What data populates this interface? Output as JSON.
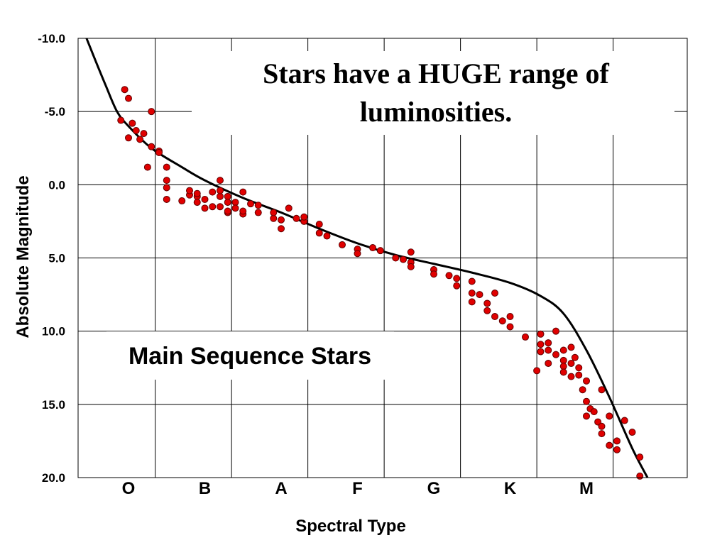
{
  "chart_data": {
    "type": "scatter",
    "title": "Stars have a HUGE range of luminosities.",
    "title_lines": [
      "Stars have a HUGE range of",
      "luminosities."
    ],
    "annotation": "Main Sequence Stars",
    "xlabel": "Spectral Type",
    "ylabel": "Absolute Magnitude",
    "y_inverted": true,
    "ylim": [
      -10,
      20
    ],
    "yticks": [
      "-10.0",
      "-5.0",
      "0.0",
      "5.0",
      "10.0",
      "15.0",
      "20.0"
    ],
    "ytick_values": [
      -10,
      -5,
      0,
      5,
      10,
      15,
      20
    ],
    "categories": [
      "O",
      "B",
      "A",
      "F",
      "G",
      "K",
      "M"
    ],
    "grid": true,
    "colors": {
      "points": "#e00000",
      "curve": "#000000",
      "grid": "#000000"
    },
    "curve": {
      "x": [
        -0.55,
        -0.45,
        -0.3,
        -0.15,
        0,
        0.3,
        0.7,
        1,
        1.5,
        2,
        2.5,
        3,
        3.5,
        4,
        4.5,
        5,
        5.4,
        5.7,
        6.0,
        6.3,
        6.6,
        6.8
      ],
      "y": [
        -10,
        -8.7,
        -6.8,
        -5,
        -4.0,
        -2.5,
        -1.2,
        -0.3,
        0.9,
        1.9,
        3.0,
        4.0,
        4.8,
        5.4,
        6.0,
        6.7,
        7.6,
        8.8,
        11.3,
        14.5,
        18.0,
        20.0
      ]
    },
    "points": {
      "x": [
        -0.05,
        -0.1,
        0,
        0.05,
        0,
        0.1,
        0.2,
        0.3,
        0.15,
        0.3,
        0.4,
        0.5,
        0.4,
        0.5,
        0.25,
        0.5,
        0.5,
        0.7,
        0.8,
        0.9,
        0.8,
        0.9,
        1.0,
        0.9,
        1.1,
        1.0,
        1.2,
        1.1,
        1.2,
        1.2,
        1.3,
        1.3,
        1.2,
        1.3,
        1.4,
        1.4,
        1.5,
        1.3,
        1.5,
        1.6,
        1.7,
        1.5,
        1.7,
        1.9,
        1.9,
        2.0,
        2.1,
        2.3,
        2.2,
        2.0,
        2.3,
        2.5,
        2.5,
        2.6,
        2.8,
        3.0,
        3.0,
        3.2,
        3.3,
        3.5,
        3.7,
        3.7,
        3.6,
        3.7,
        4.0,
        4.0,
        4.2,
        4.3,
        4.3,
        4.5,
        4.5,
        4.6,
        4.5,
        4.7,
        4.7,
        4.8,
        4.8,
        4.9,
        5.0,
        5.0,
        5.2,
        5.4,
        5.4,
        5.35,
        5.4,
        5.5,
        5.5,
        5.5,
        5.6,
        5.6,
        5.7,
        5.7,
        5.7,
        5.7,
        5.8,
        5.8,
        5.8,
        5.9,
        5.85,
        5.9,
        6.0,
        5.95,
        6.0,
        6.05,
        6.0,
        6.1,
        6.15,
        6.2,
        6.2,
        6.3,
        6.2,
        6.3,
        6.4,
        6.4,
        6.5,
        6.6,
        6.7,
        6.7
      ],
      "y": [
        -6.5,
        -4.4,
        -5.9,
        -4.2,
        -3.2,
        -3.7,
        -3.5,
        -5.0,
        -3.1,
        -2.6,
        -2.3,
        -1.2,
        -2.2,
        -0.3,
        -1.2,
        0.2,
        1.0,
        1.1,
        0.7,
        0.8,
        0.4,
        0.6,
        1.0,
        1.2,
        1.5,
        1.6,
        0.8,
        0.5,
        0.4,
        -0.3,
        0.8,
        1.2,
        1.5,
        1.9,
        1.2,
        1.6,
        2.0,
        1.8,
        1.8,
        1.3,
        1.9,
        0.5,
        1.4,
        2.3,
        1.9,
        2.4,
        1.6,
        2.5,
        2.3,
        3.0,
        2.2,
        2.7,
        3.3,
        3.5,
        4.1,
        4.4,
        4.7,
        4.3,
        4.5,
        5.0,
        4.6,
        5.3,
        5.1,
        5.6,
        5.8,
        6.1,
        6.2,
        6.4,
        6.9,
        6.6,
        7.4,
        7.5,
        8.0,
        8.1,
        8.6,
        7.4,
        9.0,
        9.3,
        9.0,
        9.7,
        10.4,
        10.9,
        11.4,
        12.7,
        10.2,
        10.8,
        11.3,
        12.2,
        10.0,
        11.6,
        11.3,
        12.0,
        12.4,
        12.8,
        11.1,
        12.2,
        13.1,
        13.0,
        11.8,
        12.5,
        13.4,
        14.0,
        14.8,
        15.3,
        15.8,
        15.5,
        16.2,
        16.5,
        14.0,
        15.8,
        17.0,
        17.8,
        17.5,
        18.1,
        16.1,
        16.9,
        18.6,
        19.9
      ]
    }
  }
}
